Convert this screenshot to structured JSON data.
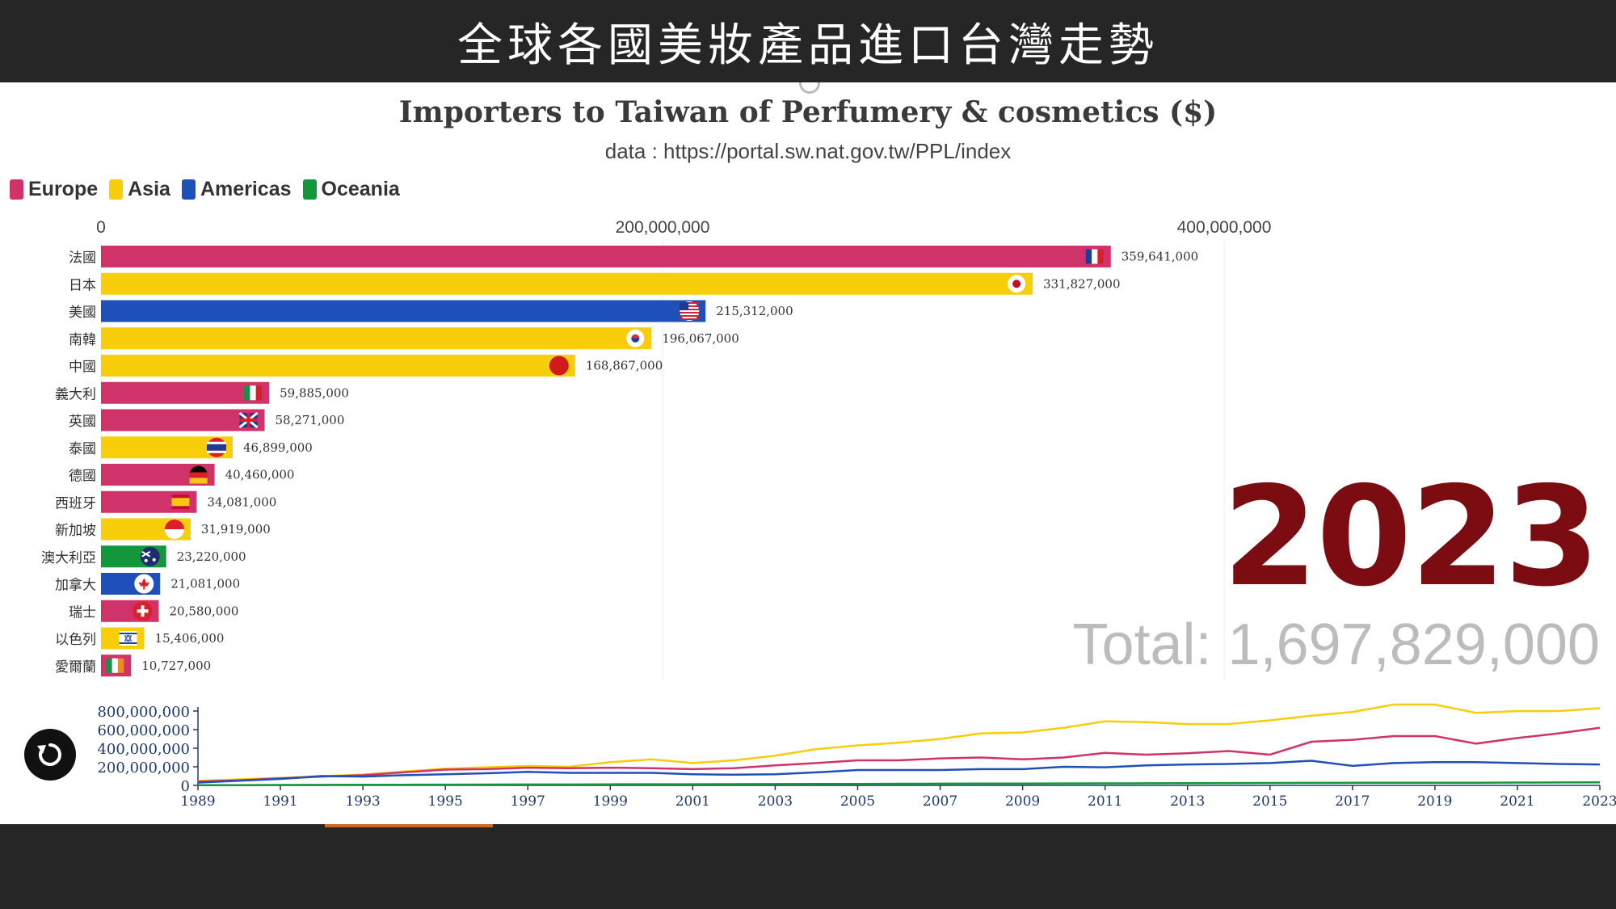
{
  "header": {
    "title": "全球各國美妝產品進口台灣走勢"
  },
  "colors": {
    "Europe": "#d0336a",
    "Asia": "#f8cd0a",
    "Americas": "#1f4fb8",
    "Oceania": "#14963c",
    "year": "#7b0d12"
  },
  "legend": [
    {
      "label": "Europe",
      "region": "Europe"
    },
    {
      "label": "Asia",
      "region": "Asia"
    },
    {
      "label": "Americas",
      "region": "Americas"
    },
    {
      "label": "Oceania",
      "region": "Oceania"
    }
  ],
  "chart_data": [
    {
      "type": "bar",
      "orientation": "horizontal",
      "title": "Importers to Taiwan of Perfumery & cosmetics ($)",
      "subtitle": "data : https://portal.sw.nat.gov.tw/PPL/index",
      "xlim": [
        0,
        400000000
      ],
      "xticks": [
        0,
        200000000,
        400000000
      ],
      "xtick_labels": [
        "0",
        "200,000,000",
        "400,000,000"
      ],
      "year": "2023",
      "total_label": "Total: 1,697,829,000",
      "bars": [
        {
          "name": "法國",
          "value": 359641000,
          "value_label": "359,641,000",
          "region": "Europe",
          "flag": "france-flag-icon"
        },
        {
          "name": "日本",
          "value": 331827000,
          "value_label": "331,827,000",
          "region": "Asia",
          "flag": "japan-flag-icon"
        },
        {
          "name": "美國",
          "value": 215312000,
          "value_label": "215,312,000",
          "region": "Americas",
          "flag": "usa-flag-icon"
        },
        {
          "name": "南韓",
          "value": 196067000,
          "value_label": "196,067,000",
          "region": "Asia",
          "flag": "korea-flag-icon"
        },
        {
          "name": "中國",
          "value": 168867000,
          "value_label": "168,867,000",
          "region": "Asia",
          "flag": "china-flag-icon"
        },
        {
          "name": "義大利",
          "value": 59885000,
          "value_label": "59,885,000",
          "region": "Europe",
          "flag": "italy-flag-icon"
        },
        {
          "name": "英國",
          "value": 58271000,
          "value_label": "58,271,000",
          "region": "Europe",
          "flag": "uk-flag-icon"
        },
        {
          "name": "泰國",
          "value": 46899000,
          "value_label": "46,899,000",
          "region": "Asia",
          "flag": "thailand-flag-icon"
        },
        {
          "name": "德國",
          "value": 40460000,
          "value_label": "40,460,000",
          "region": "Europe",
          "flag": "germany-flag-icon"
        },
        {
          "name": "西班牙",
          "value": 34081000,
          "value_label": "34,081,000",
          "region": "Europe",
          "flag": "spain-flag-icon"
        },
        {
          "name": "新加坡",
          "value": 31919000,
          "value_label": "31,919,000",
          "region": "Asia",
          "flag": "singapore-flag-icon"
        },
        {
          "name": "澳大利亞",
          "value": 23220000,
          "value_label": "23,220,000",
          "region": "Oceania",
          "flag": "australia-flag-icon"
        },
        {
          "name": "加拿大",
          "value": 21081000,
          "value_label": "21,081,000",
          "region": "Americas",
          "flag": "canada-flag-icon"
        },
        {
          "name": "瑞士",
          "value": 20580000,
          "value_label": "20,580,000",
          "region": "Europe",
          "flag": "switzerland-flag-icon"
        },
        {
          "name": "以色列",
          "value": 15406000,
          "value_label": "15,406,000",
          "region": "Asia",
          "flag": "israel-flag-icon"
        },
        {
          "name": "愛爾蘭",
          "value": 10727000,
          "value_label": "10,727,000",
          "region": "Europe",
          "flag": "ireland-flag-icon"
        }
      ]
    },
    {
      "type": "line",
      "x": [
        1989,
        1990,
        1991,
        1992,
        1993,
        1994,
        1995,
        1996,
        1997,
        1998,
        1999,
        2000,
        2001,
        2002,
        2003,
        2004,
        2005,
        2006,
        2007,
        2008,
        2009,
        2010,
        2011,
        2012,
        2013,
        2014,
        2015,
        2016,
        2017,
        2018,
        2019,
        2020,
        2021,
        2022,
        2023
      ],
      "xticks": [
        1989,
        1991,
        1993,
        1995,
        1997,
        1999,
        2001,
        2003,
        2005,
        2007,
        2009,
        2011,
        2013,
        2015,
        2017,
        2019,
        2021,
        2023
      ],
      "ylim": [
        0,
        800000000
      ],
      "yticks": [
        0,
        200000000,
        400000000,
        600000000,
        800000000
      ],
      "ytick_labels": [
        "0",
        "200,000,000",
        "400,000,000",
        "600,000,000",
        "800,000,000"
      ],
      "series": [
        {
          "region": "Asia",
          "values": [
            50,
            65,
            80,
            100,
            115,
            150,
            180,
            195,
            210,
            200,
            250,
            280,
            240,
            270,
            320,
            390,
            430,
            460,
            500,
            560,
            570,
            620,
            690,
            680,
            660,
            660,
            700,
            750,
            790,
            870,
            870,
            780,
            800,
            800,
            830
          ]
        },
        {
          "region": "Europe",
          "values": [
            40,
            55,
            75,
            95,
            110,
            140,
            170,
            175,
            190,
            185,
            190,
            185,
            175,
            185,
            215,
            240,
            270,
            270,
            290,
            300,
            280,
            300,
            350,
            330,
            345,
            370,
            330,
            470,
            490,
            530,
            530,
            450,
            510,
            560,
            620
          ]
        },
        {
          "region": "Americas",
          "values": [
            30,
            50,
            70,
            100,
            95,
            110,
            120,
            130,
            145,
            135,
            135,
            135,
            120,
            115,
            120,
            140,
            165,
            165,
            165,
            175,
            175,
            200,
            195,
            215,
            225,
            230,
            240,
            265,
            210,
            240,
            250,
            250,
            240,
            230,
            225
          ]
        },
        {
          "region": "Oceania",
          "values": [
            2,
            3,
            4,
            5,
            6,
            7,
            8,
            9,
            10,
            10,
            11,
            12,
            12,
            13,
            14,
            15,
            16,
            17,
            18,
            19,
            20,
            21,
            22,
            23,
            24,
            25,
            26,
            27,
            28,
            29,
            29,
            28,
            30,
            31,
            32
          ]
        }
      ],
      "values_unit": "millions"
    }
  ]
}
